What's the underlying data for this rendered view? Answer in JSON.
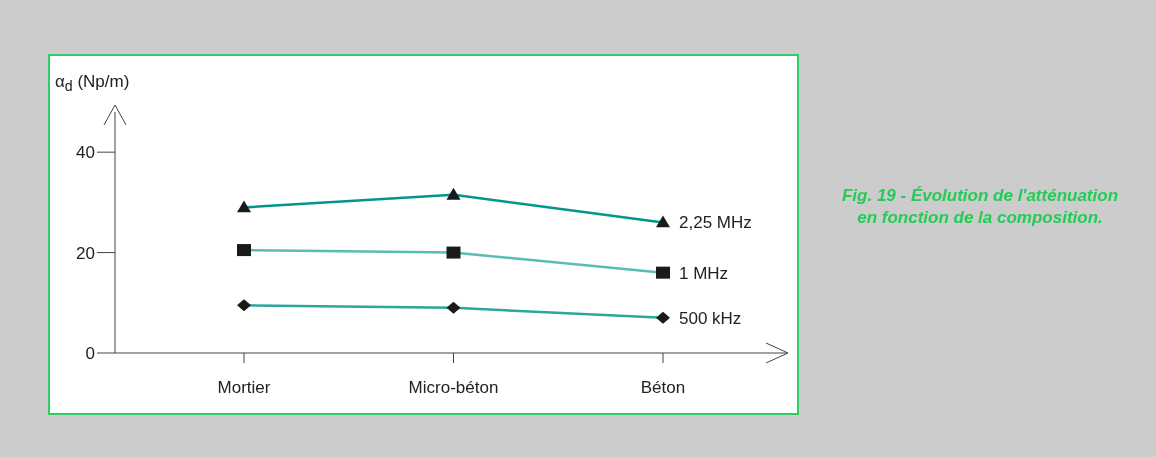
{
  "chart_data": {
    "type": "line",
    "ylabel": "α$_{d}$ (Np/m)",
    "categories": [
      "Mortier",
      "Micro-béton",
      "Béton"
    ],
    "series": [
      {
        "name": "2,25 MHz",
        "color": "#00968a",
        "marker": "triangle",
        "values": [
          29,
          31.5,
          26
        ]
      },
      {
        "name": "1 MHz",
        "color": "#5bbcb4",
        "marker": "square",
        "values": [
          20.5,
          20,
          16
        ]
      },
      {
        "name": "500 kHz",
        "color": "#2aa69a",
        "marker": "diamond",
        "values": [
          9.5,
          9,
          7
        ]
      }
    ],
    "ylim": [
      0,
      48
    ],
    "yticks": [
      0,
      20,
      40
    ],
    "grid": false,
    "legend": false,
    "annotations": [
      "Fig. 19 - Évolution de l'atténuation en fonction de la composition."
    ]
  }
}
